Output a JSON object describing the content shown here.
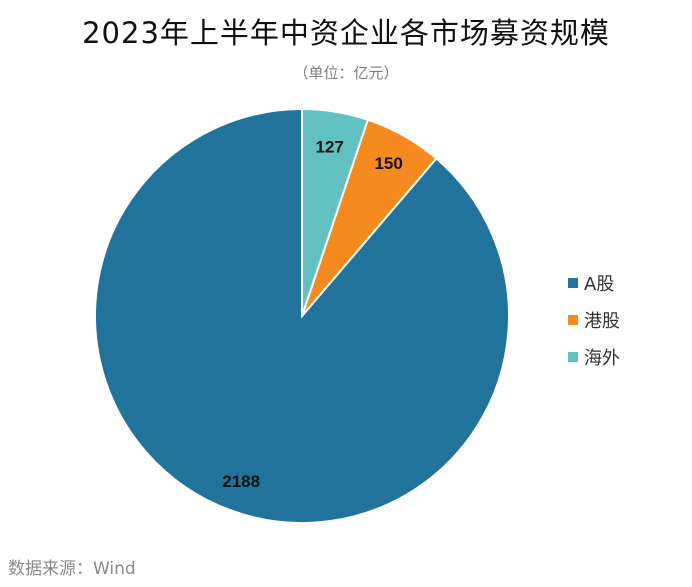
{
  "chart_data": {
    "type": "pie",
    "title": "2023年上半年中资企业各市场募资规模",
    "subtitle": "（单位：亿元）",
    "categories": [
      "A股",
      "港股",
      "海外"
    ],
    "values": [
      2188,
      150,
      127
    ],
    "colors": [
      "#22739b",
      "#f58a1f",
      "#62c2c2"
    ],
    "legend_position": "right",
    "start_angle": "12 o'clock",
    "direction": "counterclockwise"
  },
  "source": "数据来源：Wind"
}
